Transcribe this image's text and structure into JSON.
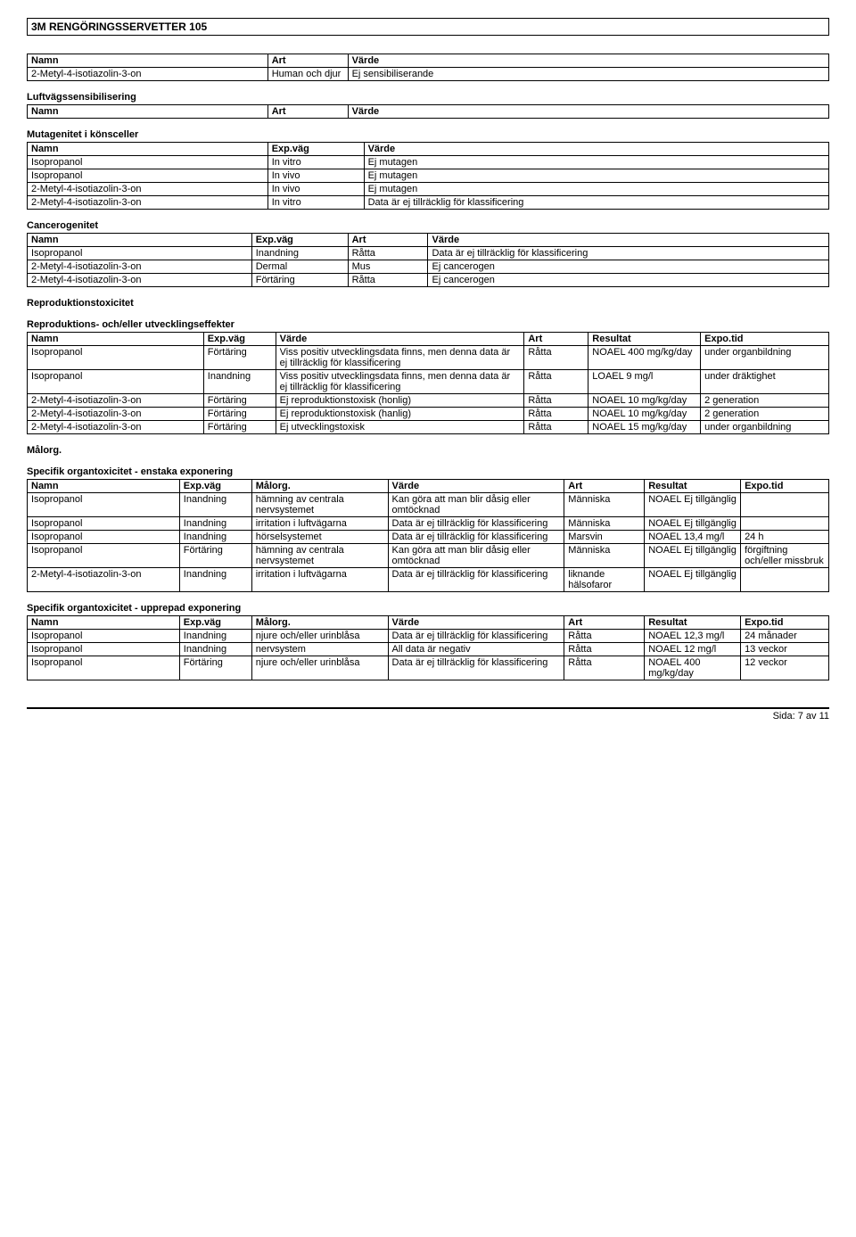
{
  "doc_title": "3M RENGÖRINGSSERVETTER 105",
  "t1": {
    "h": [
      "Namn",
      "Art",
      "Värde"
    ],
    "r": [
      [
        "2-Metyl-4-isotiazolin-3-on",
        "Human och djur",
        "Ej sensibiliserande"
      ]
    ]
  },
  "s2": "Luftvägssensibilisering",
  "t2": {
    "h": [
      "Namn",
      "Art",
      "Värde"
    ],
    "r": []
  },
  "s3": "Mutagenitet i könsceller",
  "t3": {
    "h": [
      "Namn",
      "Exp.väg",
      "Värde"
    ],
    "r": [
      [
        "Isopropanol",
        "In vitro",
        "Ej mutagen"
      ],
      [
        "Isopropanol",
        "In vivo",
        "Ej mutagen"
      ],
      [
        "2-Metyl-4-isotiazolin-3-on",
        "In vivo",
        "Ej mutagen"
      ],
      [
        "2-Metyl-4-isotiazolin-3-on",
        "In vitro",
        "Data är ej tillräcklig för klassificering"
      ]
    ]
  },
  "s4": "Cancerogenitet",
  "t4": {
    "h": [
      "Namn",
      "Exp.väg",
      "Art",
      "Värde"
    ],
    "r": [
      [
        "Isopropanol",
        "Inandning",
        "Råtta",
        "Data är ej tillräcklig för klassificering"
      ],
      [
        "2-Metyl-4-isotiazolin-3-on",
        "Dermal",
        "Mus",
        "Ej cancerogen"
      ],
      [
        "2-Metyl-4-isotiazolin-3-on",
        "Förtäring",
        "Råtta",
        "Ej cancerogen"
      ]
    ]
  },
  "s5": "Reproduktionstoxicitet",
  "s6": "Reproduktions- och/eller utvecklingseffekter",
  "t6": {
    "h": [
      "Namn",
      "Exp.väg",
      "Värde",
      "Art",
      "Resultat",
      "Expo.tid"
    ],
    "r": [
      [
        "Isopropanol",
        "Förtäring",
        "Viss positiv utvecklingsdata finns, men denna data är ej tillräcklig för klassificering",
        "Råtta",
        "NOAEL 400 mg/kg/day",
        "under organbildning"
      ],
      [
        "Isopropanol",
        "Inandning",
        "Viss positiv utvecklingsdata finns, men denna data är ej tillräcklig för klassificering",
        "Råtta",
        "LOAEL 9 mg/l",
        "under dräktighet"
      ],
      [
        "2-Metyl-4-isotiazolin-3-on",
        "Förtäring",
        "Ej reproduktionstoxisk (honlig)",
        "Råtta",
        "NOAEL 10 mg/kg/day",
        "2 generation"
      ],
      [
        "2-Metyl-4-isotiazolin-3-on",
        "Förtäring",
        "Ej reproduktionstoxisk (hanlig)",
        "Råtta",
        "NOAEL 10 mg/kg/day",
        "2 generation"
      ],
      [
        "2-Metyl-4-isotiazolin-3-on",
        "Förtäring",
        "Ej utvecklingstoxisk",
        "Råtta",
        "NOAEL 15 mg/kg/day",
        "under organbildning"
      ]
    ]
  },
  "s7": "Målorg.",
  "s8": "Specifik organtoxicitet - enstaka exponering",
  "t8": {
    "h": [
      "Namn",
      "Exp.väg",
      "Målorg.",
      "Värde",
      "Art",
      "Resultat",
      "Expo.tid"
    ],
    "r": [
      [
        "Isopropanol",
        "Inandning",
        "hämning av centrala nervsystemet",
        "Kan göra att man blir dåsig eller omtöcknad",
        "Människa",
        "NOAEL Ej tillgänglig",
        ""
      ],
      [
        "Isopropanol",
        "Inandning",
        "irritation i luftvägarna",
        "Data är ej tillräcklig för klassificering",
        "Människa",
        "NOAEL Ej tillgänglig",
        ""
      ],
      [
        "Isopropanol",
        "Inandning",
        "hörselsystemet",
        "Data är ej tillräcklig för klassificering",
        "Marsvin",
        "NOAEL 13,4 mg/l",
        "24 h"
      ],
      [
        "Isopropanol",
        "Förtäring",
        "hämning av centrala nervsystemet",
        "Kan göra att man blir dåsig eller omtöcknad",
        "Människa",
        "NOAEL Ej tillgänglig",
        "förgiftning och/eller missbruk"
      ],
      [
        "2-Metyl-4-isotiazolin-3-on",
        "Inandning",
        "irritation i luftvägarna",
        "Data är ej tillräcklig för klassificering",
        "liknande hälsofaror",
        "NOAEL Ej tillgänglig",
        ""
      ]
    ]
  },
  "s9": "Specifik organtoxicitet - upprepad exponering",
  "t9": {
    "h": [
      "Namn",
      "Exp.väg",
      "Målorg.",
      "Värde",
      "Art",
      "Resultat",
      "Expo.tid"
    ],
    "r": [
      [
        "Isopropanol",
        "Inandning",
        "njure och/eller urinblåsa",
        "Data är ej tillräcklig för klassificering",
        "Råtta",
        "NOAEL 12,3 mg/l",
        "24 månader"
      ],
      [
        "Isopropanol",
        "Inandning",
        "nervsystem",
        "All data är negativ",
        "Råtta",
        "NOAEL 12 mg/l",
        "13 veckor"
      ],
      [
        "Isopropanol",
        "Förtäring",
        "njure och/eller urinblåsa",
        "Data är ej tillräcklig för klassificering",
        "Råtta",
        "NOAEL 400 mg/kg/day",
        "12 veckor"
      ]
    ]
  },
  "footer": "Sida: 7 av  11",
  "colwidths": {
    "t1": [
      "30%",
      "10%",
      "60%"
    ],
    "t2": [
      "30%",
      "10%",
      "60%"
    ],
    "t3": [
      "30%",
      "12%",
      "58%"
    ],
    "t4": [
      "28%",
      "12%",
      "10%",
      "50%"
    ],
    "t6": [
      "22%",
      "9%",
      "31%",
      "8%",
      "14%",
      "16%"
    ],
    "t8": [
      "19%",
      "9%",
      "17%",
      "22%",
      "10%",
      "12%",
      "11%"
    ],
    "t9": [
      "19%",
      "9%",
      "17%",
      "22%",
      "10%",
      "12%",
      "11%"
    ]
  }
}
